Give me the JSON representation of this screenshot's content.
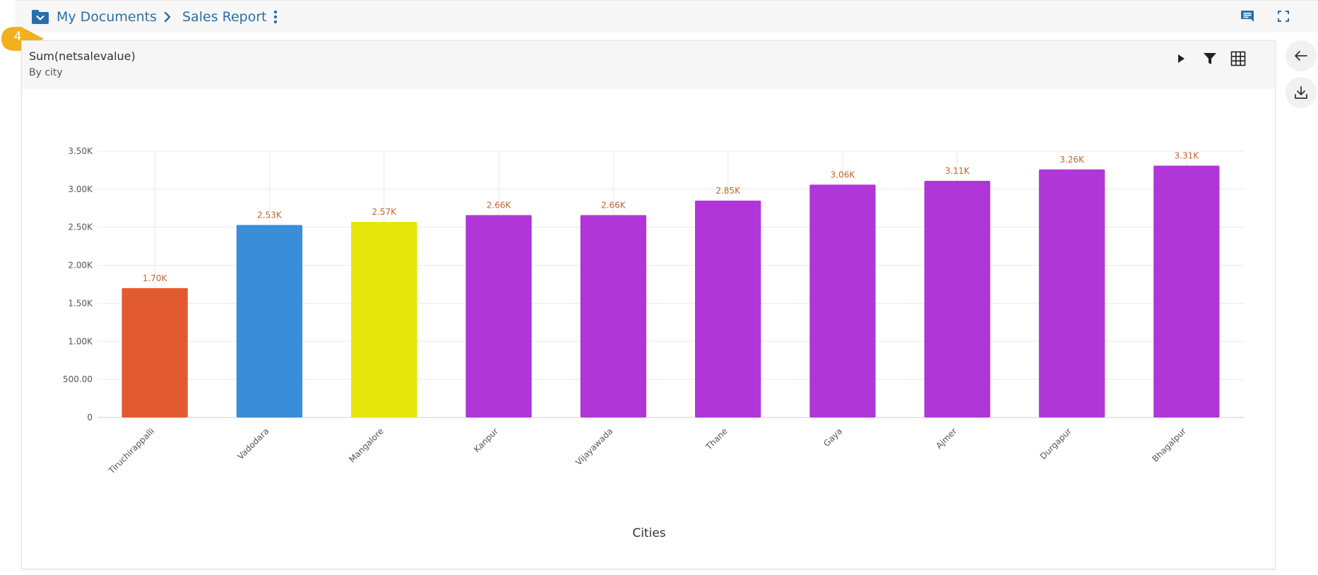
{
  "breadcrumb": {
    "root_label": "My Documents",
    "current_label": "Sales Report"
  },
  "step_badge": "4",
  "card": {
    "title": "Sum(netsalevalue)",
    "subtitle": "By city"
  },
  "colors": {
    "accent": "#2a6fa8",
    "badge": "#f2b01e"
  },
  "chart_data": {
    "type": "bar",
    "title": "",
    "xlabel": "Cities",
    "ylabel": "",
    "ylim": [
      0,
      3500
    ],
    "yticks": [
      {
        "value": 0,
        "label": "0"
      },
      {
        "value": 500,
        "label": "500.00"
      },
      {
        "value": 1000,
        "label": "1.00K"
      },
      {
        "value": 1500,
        "label": "1.50K"
      },
      {
        "value": 2000,
        "label": "2.00K"
      },
      {
        "value": 2500,
        "label": "2.50K"
      },
      {
        "value": 3000,
        "label": "3.00K"
      },
      {
        "value": 3500,
        "label": "3.50K"
      }
    ],
    "grid": true,
    "categories": [
      "Tiruchirappalli",
      "Vadodara",
      "Mangalore",
      "Kanpur",
      "Vijayawada",
      "Thane",
      "Gaya",
      "Ajmer",
      "Durgapur",
      "Bhagalpur"
    ],
    "values": [
      1700,
      2530,
      2570,
      2660,
      2660,
      2850,
      3060,
      3110,
      3260,
      3310
    ],
    "value_labels": [
      "1.70K",
      "2.53K",
      "2.57K",
      "2.66K",
      "2.66K",
      "2.85K",
      "3.06K",
      "3.11K",
      "3.26K",
      "3.31K"
    ],
    "bar_colors": [
      "#e25a2f",
      "#3a8dd8",
      "#e6e60a",
      "#b036d8",
      "#b036d8",
      "#b036d8",
      "#b036d8",
      "#b036d8",
      "#b036d8",
      "#b036d8"
    ],
    "value_label_color": "#c0642e"
  }
}
